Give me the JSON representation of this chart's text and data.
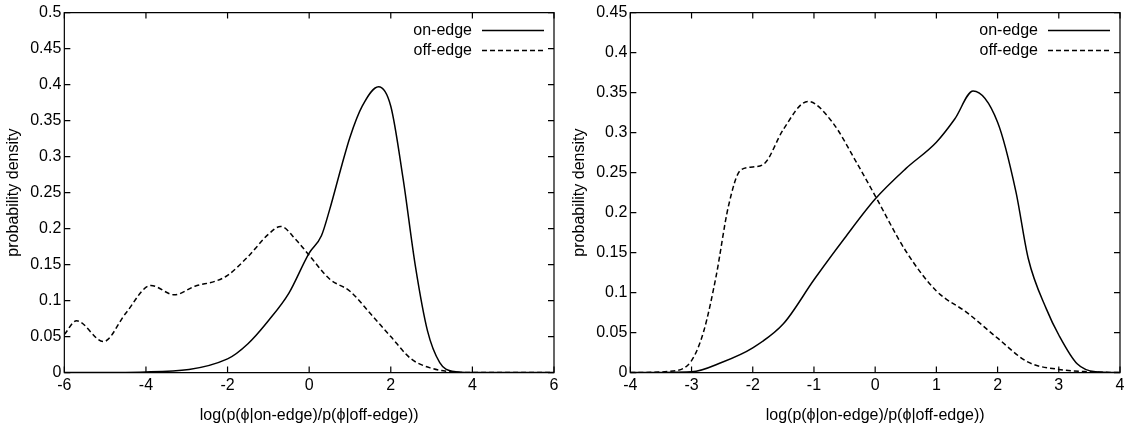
{
  "chart_data": [
    {
      "type": "line",
      "xlabel": "log(p(ϕ|on-edge)/p(ϕ|off-edge))",
      "ylabel": "probability density",
      "xlim": [
        -6,
        6
      ],
      "xticks": [
        -6,
        -4,
        -2,
        0,
        2,
        4,
        6
      ],
      "ylim": [
        0,
        0.5
      ],
      "yticks": [
        0,
        0.05,
        0.1,
        0.15,
        0.2,
        0.25,
        0.3,
        0.35,
        0.4,
        0.45,
        0.5
      ],
      "grid": false,
      "legend": "top right",
      "marker": "none",
      "series": [
        {
          "name": "on-edge",
          "color": "#000000",
          "line_style": "solid",
          "x": [
            -6,
            -4,
            -2,
            -1.5,
            -1,
            -0.5,
            0,
            0.3,
            0.5,
            0.8,
            1,
            1.3,
            1.7,
            2,
            2.3,
            2.6,
            2.9,
            3.2,
            3.5,
            4,
            6
          ],
          "values": [
            0,
            0.001,
            0.019,
            0.04,
            0.072,
            0.11,
            0.166,
            0.19,
            0.226,
            0.288,
            0.327,
            0.37,
            0.397,
            0.37,
            0.27,
            0.149,
            0.058,
            0.014,
            0.002,
            0,
            0
          ]
        },
        {
          "name": "off-edge",
          "color": "#000000",
          "line_style": "dashed",
          "x": [
            -6,
            -5.7,
            -5.04,
            -4.5,
            -3.88,
            -3.3,
            -2.8,
            -2.3,
            -2,
            -1.5,
            -1,
            -0.7,
            -0.3,
            0,
            0.5,
            1,
            1.5,
            2,
            2.5,
            3,
            3.5,
            4,
            6
          ],
          "values": [
            0.053,
            0.072,
            0.043,
            0.082,
            0.121,
            0.108,
            0.12,
            0.127,
            0.135,
            0.161,
            0.192,
            0.203,
            0.183,
            0.163,
            0.13,
            0.113,
            0.082,
            0.05,
            0.019,
            0.006,
            0.001,
            0,
            0
          ]
        }
      ]
    },
    {
      "type": "line",
      "xlabel": "log(p(ϕ|on-edge)/p(ϕ|off-edge))",
      "ylabel": "probability density",
      "xlim": [
        -4,
        4
      ],
      "xticks": [
        -4,
        -3,
        -2,
        -1,
        0,
        1,
        2,
        3,
        4
      ],
      "ylim": [
        0,
        0.45
      ],
      "yticks": [
        0,
        0.05,
        0.1,
        0.15,
        0.2,
        0.25,
        0.3,
        0.35,
        0.4,
        0.45
      ],
      "grid": false,
      "legend": "top right",
      "marker": "none",
      "series": [
        {
          "name": "on-edge",
          "color": "#000000",
          "line_style": "solid",
          "x": [
            -4,
            -3,
            -2.5,
            -2,
            -1.5,
            -1,
            -0.5,
            0,
            0.5,
            1,
            1.3,
            1.6,
            2,
            2.3,
            2.5,
            2.8,
            3,
            3.3,
            3.6,
            4
          ],
          "values": [
            0,
            0.001,
            0.013,
            0.031,
            0.061,
            0.116,
            0.168,
            0.217,
            0.255,
            0.288,
            0.317,
            0.352,
            0.313,
            0.226,
            0.143,
            0.079,
            0.047,
            0.011,
            0.001,
            0
          ]
        },
        {
          "name": "off-edge",
          "color": "#000000",
          "line_style": "dashed",
          "x": [
            -4,
            -3.3,
            -3,
            -2.8,
            -2.6,
            -2.4,
            -2.2,
            -2,
            -1.8,
            -1.5,
            -1.1,
            -0.7,
            -0.3,
            0,
            0.5,
            1,
            1.5,
            2,
            2.5,
            3,
            3.5,
            4
          ],
          "values": [
            0,
            0.002,
            0.015,
            0.052,
            0.12,
            0.207,
            0.253,
            0.257,
            0.262,
            0.304,
            0.339,
            0.313,
            0.262,
            0.221,
            0.152,
            0.102,
            0.075,
            0.043,
            0.013,
            0.004,
            0.001,
            0
          ]
        }
      ]
    }
  ]
}
